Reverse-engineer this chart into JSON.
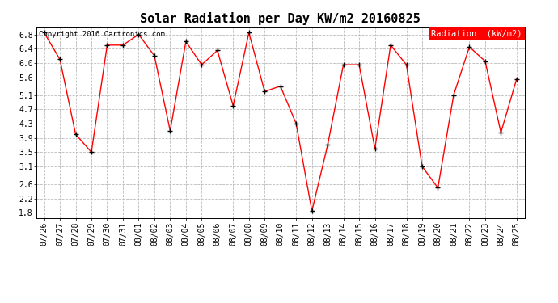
{
  "title": "Solar Radiation per Day KW/m2 20160825",
  "copyright": "Copyright 2016 Cartronics.com",
  "legend_label": "Radiation  (kW/m2)",
  "dates": [
    "07/26",
    "07/27",
    "07/28",
    "07/29",
    "07/30",
    "07/31",
    "08/01",
    "08/02",
    "08/03",
    "08/04",
    "08/05",
    "08/06",
    "08/07",
    "08/08",
    "08/09",
    "08/10",
    "08/11",
    "08/12",
    "08/13",
    "08/14",
    "08/15",
    "08/16",
    "08/17",
    "08/18",
    "08/19",
    "08/20",
    "08/21",
    "08/22",
    "08/23",
    "08/24",
    "08/25"
  ],
  "values": [
    6.85,
    6.1,
    4.0,
    3.5,
    6.5,
    6.5,
    6.8,
    6.2,
    4.1,
    6.6,
    5.95,
    6.35,
    4.8,
    6.85,
    5.2,
    5.35,
    4.3,
    1.85,
    3.7,
    5.95,
    5.95,
    3.6,
    6.5,
    5.95,
    3.1,
    2.5,
    5.1,
    6.45,
    6.05,
    4.05,
    5.55
  ],
  "yticks": [
    1.8,
    2.2,
    2.6,
    3.1,
    3.5,
    3.9,
    4.3,
    4.7,
    5.1,
    5.6,
    6.0,
    6.4,
    6.8
  ],
  "ylim": [
    1.65,
    7.0
  ],
  "line_color": "red",
  "marker_color": "black",
  "background_color": "#ffffff",
  "grid_color": "#bbbbbb",
  "legend_bg": "red",
  "legend_text_color": "white",
  "title_fontsize": 11,
  "copyright_fontsize": 6.5,
  "tick_fontsize": 7,
  "legend_fontsize": 7.5
}
